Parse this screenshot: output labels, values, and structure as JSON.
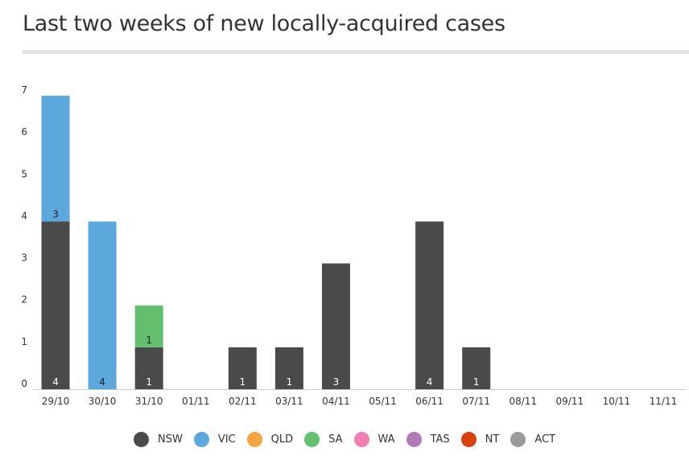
{
  "title": "Last two weeks of new locally-acquired cases",
  "chart_data": {
    "type": "bar",
    "stacked": true,
    "categories": [
      "29/10",
      "30/10",
      "31/10",
      "01/11",
      "02/11",
      "03/11",
      "04/11",
      "05/11",
      "06/11",
      "07/11",
      "08/11",
      "09/11",
      "10/11",
      "11/11"
    ],
    "series": [
      {
        "name": "NSW",
        "color": "#4a4a4a",
        "values": [
          4,
          0,
          1,
          0,
          1,
          1,
          3,
          0,
          4,
          1,
          0,
          0,
          0,
          0
        ]
      },
      {
        "name": "VIC",
        "color": "#5ca8dc",
        "values": [
          3,
          4,
          0,
          0,
          0,
          0,
          0,
          0,
          0,
          0,
          0,
          0,
          0,
          0
        ]
      },
      {
        "name": "QLD",
        "color": "#f5a442",
        "values": [
          0,
          0,
          0,
          0,
          0,
          0,
          0,
          0,
          0,
          0,
          0,
          0,
          0,
          0
        ]
      },
      {
        "name": "SA",
        "color": "#63bf6d",
        "values": [
          0,
          0,
          1,
          0,
          0,
          0,
          0,
          0,
          0,
          0,
          0,
          0,
          0,
          0
        ]
      },
      {
        "name": "WA",
        "color": "#ef7fb1",
        "values": [
          0,
          0,
          0,
          0,
          0,
          0,
          0,
          0,
          0,
          0,
          0,
          0,
          0,
          0
        ]
      },
      {
        "name": "TAS",
        "color": "#b07ab8",
        "values": [
          0,
          0,
          0,
          0,
          0,
          0,
          0,
          0,
          0,
          0,
          0,
          0,
          0,
          0
        ]
      },
      {
        "name": "NT",
        "color": "#d9400e",
        "values": [
          0,
          0,
          0,
          0,
          0,
          0,
          0,
          0,
          0,
          0,
          0,
          0,
          0,
          0
        ]
      },
      {
        "name": "ACT",
        "color": "#9a9a9a",
        "values": [
          0,
          0,
          0,
          0,
          0,
          0,
          0,
          0,
          0,
          0,
          0,
          0,
          0,
          0
        ]
      }
    ],
    "ylim": [
      0,
      7
    ],
    "yticks": [
      0,
      1,
      2,
      3,
      4,
      5,
      6,
      7
    ],
    "xlabel": "",
    "ylabel": "",
    "legend_position": "bottom",
    "grid": false
  }
}
